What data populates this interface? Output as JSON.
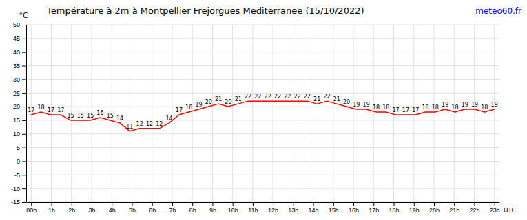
{
  "chart_data": {
    "type": "line",
    "title": "Température à 2m à Montpellier Frejorgues Mediterranee (15/10/2022)",
    "ylabel": "°C",
    "xlabel": "UTC",
    "annotations": [
      {
        "text": "meteo60.fr",
        "color": "blue"
      }
    ],
    "x": [
      0,
      0.4893617021276596,
      0.9787234042553191,
      1.468085106382979,
      1.957446808510638,
      2.446808510638298,
      2.936170212765957,
      3.425531914893617,
      3.914893617021277,
      4.404255319148936,
      4.893617021276596,
      5.382978723404255,
      5.872340425531915,
      6.361702127659574,
      6.851063829787234,
      7.340425531914894,
      7.829787234042553,
      8.319148936170214,
      8.808510638297872,
      9.297872340425531,
      9.787234042553191,
      10.27659574468085,
      10.76595744680851,
      11.25531914893617,
      11.74468085106383,
      12.23404255319149,
      12.72340425531915,
      13.21276595744681,
      13.70212765957447,
      14.19148936170213,
      14.68085106382979,
      15.17021276595745,
      15.65957446808511,
      16.14893617021277,
      16.63829787234043,
      17.12765957446809,
      17.61702127659575,
      18.1063829787234,
      18.59574468085106,
      19.08510638297872,
      19.57446808510638,
      20.06382978723404,
      20.5531914893617,
      21.04255319148936,
      21.53191489361702,
      22.02127659574468,
      22.51063829787234,
      23
    ],
    "values": [
      17,
      18,
      17,
      17,
      15,
      15,
      15,
      16,
      15,
      14,
      11,
      12,
      12,
      12,
      14,
      17,
      18,
      19,
      20,
      21,
      20,
      21,
      22,
      22,
      22,
      22,
      22,
      22,
      22,
      21,
      22,
      21,
      20,
      19,
      19,
      18,
      18,
      17,
      17,
      17,
      18,
      18,
      19,
      18,
      19,
      19,
      18,
      19
    ],
    "color": "#ff0000",
    "data_labels": true,
    "grid": true,
    "xlim": [
      -0.25,
      23.25
    ],
    "xticks": [
      {
        "value": 0,
        "label": "00h"
      },
      {
        "value": 1,
        "label": "1h"
      },
      {
        "value": 2,
        "label": "2h"
      },
      {
        "value": 3,
        "label": "3h"
      },
      {
        "value": 4,
        "label": "4h"
      },
      {
        "value": 5,
        "label": "5h"
      },
      {
        "value": 6,
        "label": "6h"
      },
      {
        "value": 7,
        "label": "7h"
      },
      {
        "value": 8,
        "label": "8h"
      },
      {
        "value": 9,
        "label": "9h"
      },
      {
        "value": 10,
        "label": "10h"
      },
      {
        "value": 11,
        "label": "11h"
      },
      {
        "value": 12,
        "label": "12h"
      },
      {
        "value": 13,
        "label": "13h"
      },
      {
        "value": 14,
        "label": "14h"
      },
      {
        "value": 15,
        "label": "15h"
      },
      {
        "value": 16,
        "label": "16h"
      },
      {
        "value": 17,
        "label": "17h"
      },
      {
        "value": 18,
        "label": "18h"
      },
      {
        "value": 19,
        "label": "19h"
      },
      {
        "value": 20,
        "label": "20h"
      },
      {
        "value": 21,
        "label": "21h"
      },
      {
        "value": 22,
        "label": "22h"
      },
      {
        "value": 23,
        "label": "23h"
      }
    ],
    "ylim": [
      -15,
      50
    ],
    "yticks": [
      -15,
      -10,
      -5,
      0,
      5,
      10,
      15,
      20,
      25,
      30,
      35,
      40,
      45,
      50
    ]
  }
}
